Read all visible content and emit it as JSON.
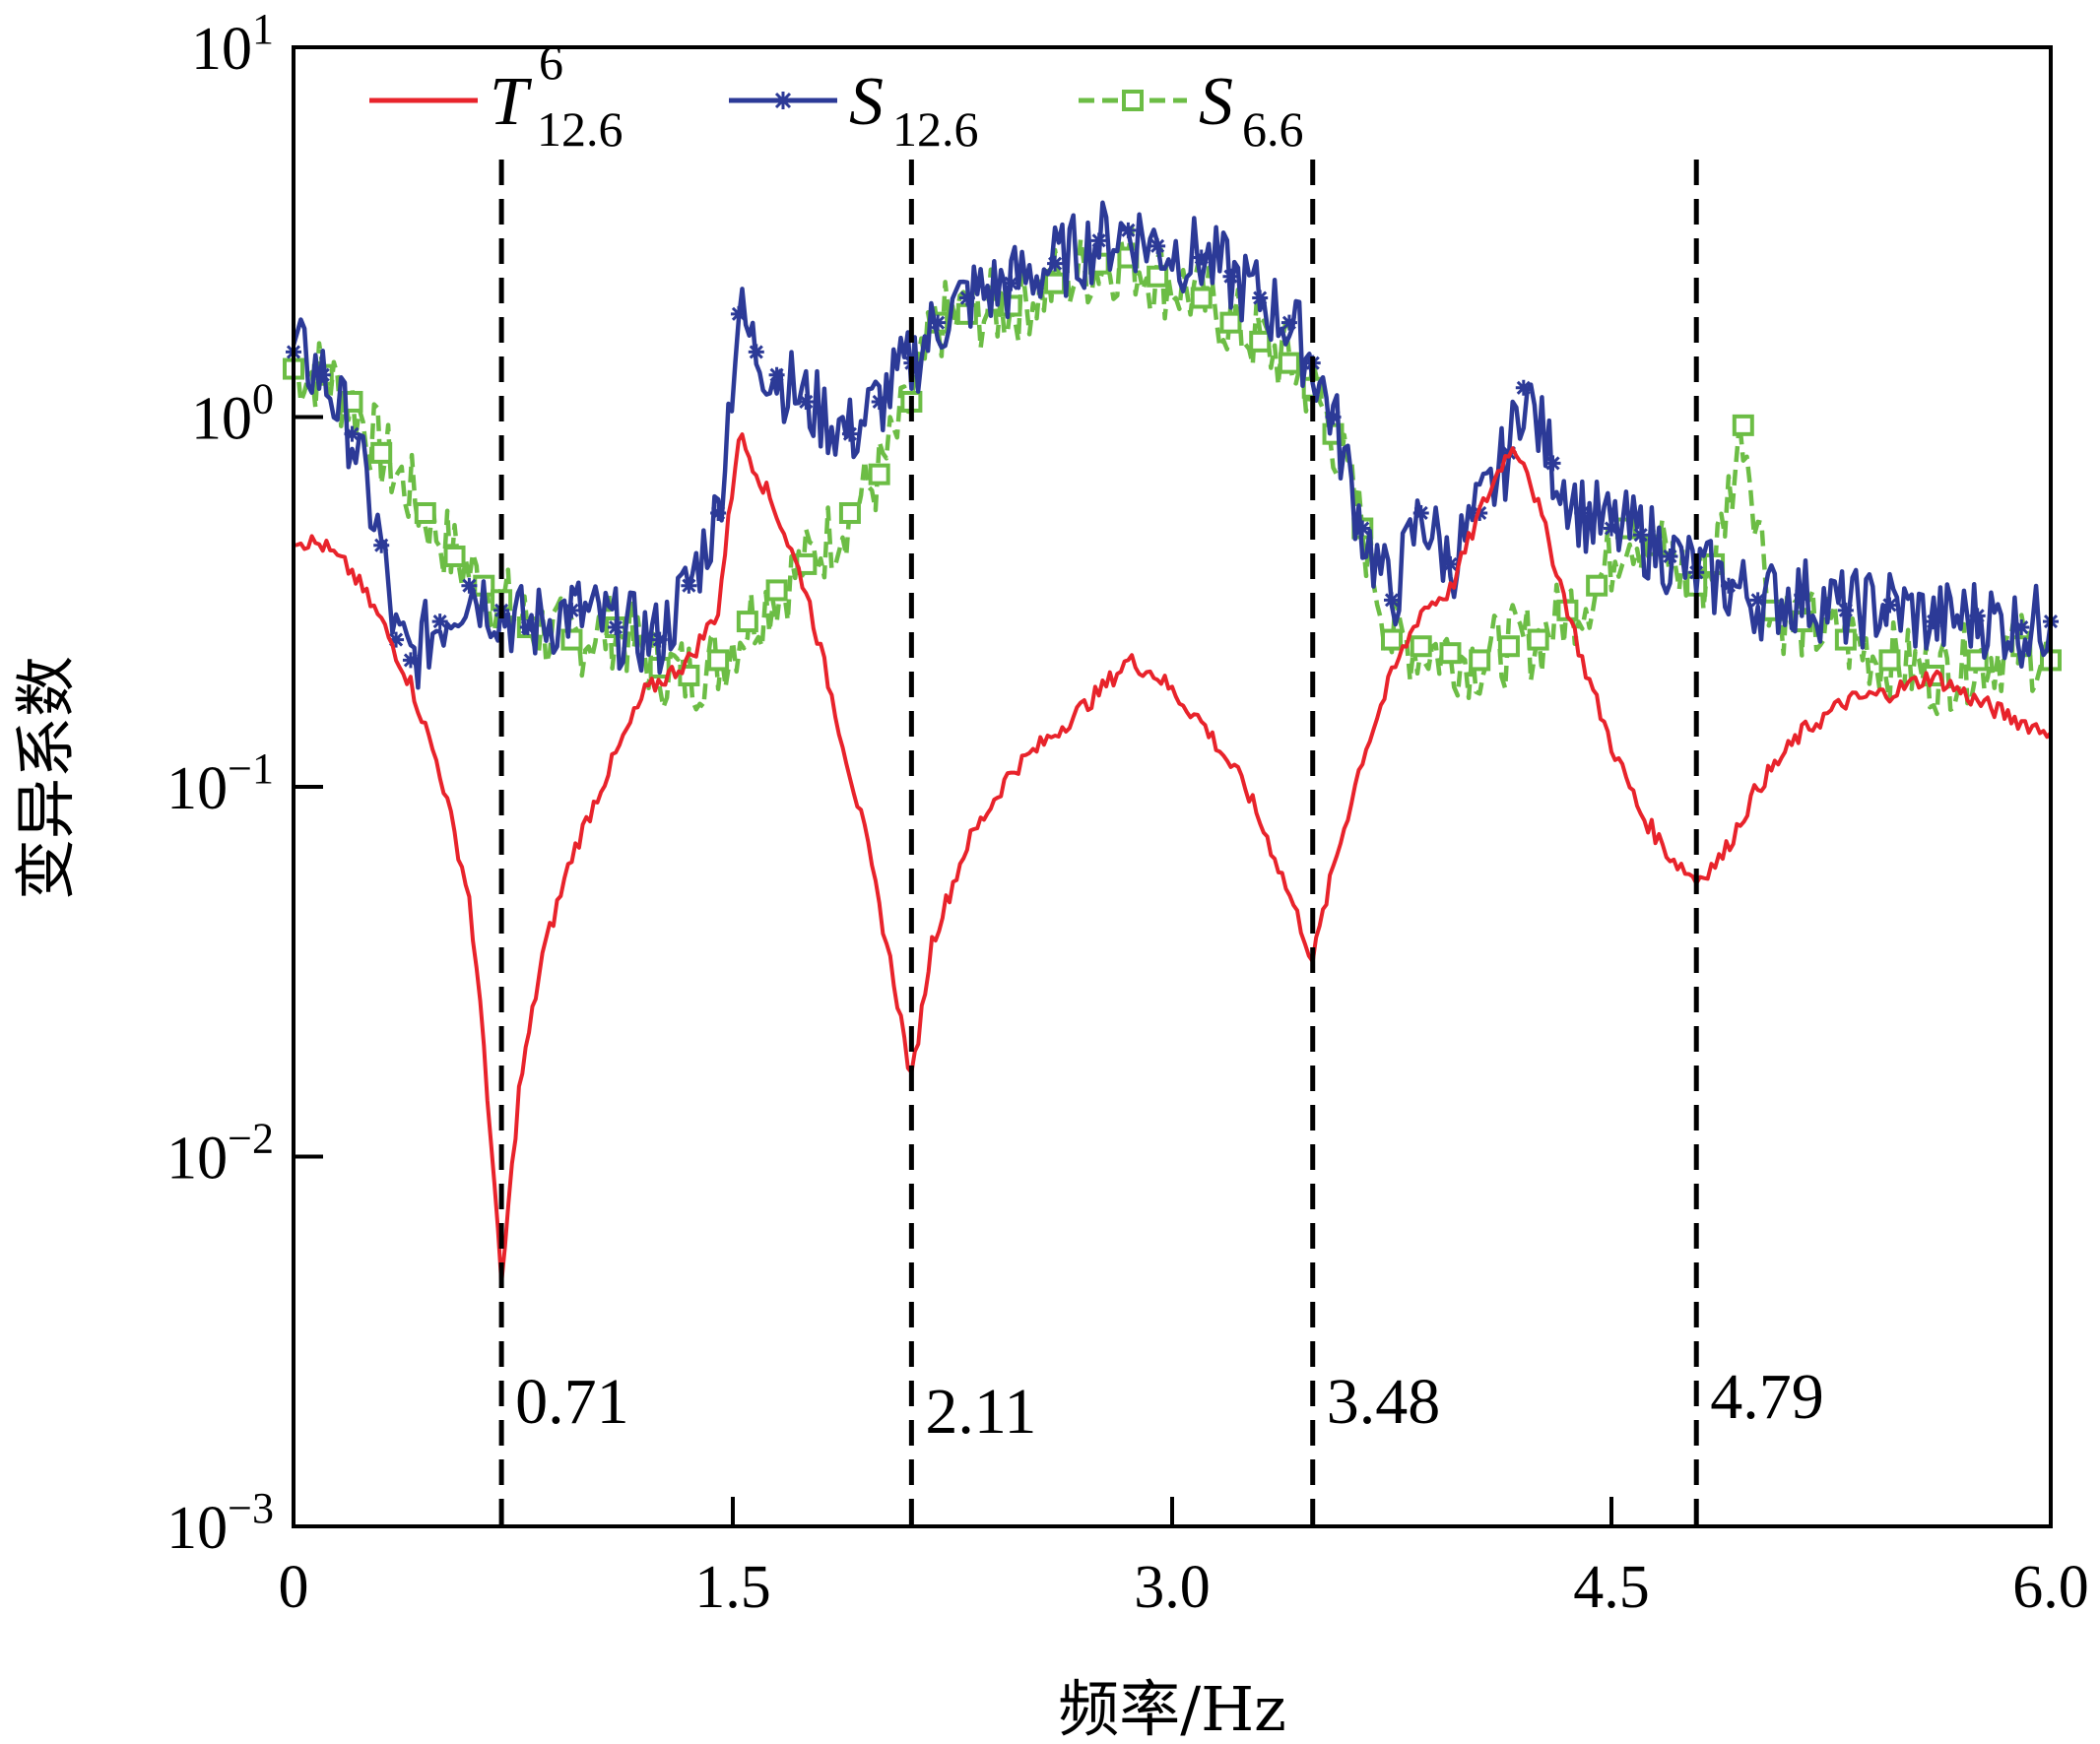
{
  "chart_data": {
    "type": "line",
    "title": "",
    "xlabel": "频率/Hz",
    "ylabel": "变异系数",
    "xlim": [
      0,
      6.0
    ],
    "ylim": [
      0.001,
      10
    ],
    "y_scale": "log",
    "x_ticks": [
      {
        "value": 0,
        "label": "0"
      },
      {
        "value": 1.5,
        "label": "1.5"
      },
      {
        "value": 3.0,
        "label": "3.0"
      },
      {
        "value": 4.5,
        "label": "4.5"
      },
      {
        "value": 6.0,
        "label": "6.0"
      }
    ],
    "y_ticks": [
      {
        "value": 0.001,
        "base": "10",
        "exp": "−3"
      },
      {
        "value": 0.01,
        "base": "10",
        "exp": "−2"
      },
      {
        "value": 0.1,
        "base": "10",
        "exp": "−1"
      },
      {
        "value": 1,
        "base": "10",
        "exp": "0"
      },
      {
        "value": 10,
        "base": "10",
        "exp": "1"
      }
    ],
    "grid": false,
    "legend_position": "top",
    "vertical_lines": [
      {
        "x": 0.71,
        "label": "0.71"
      },
      {
        "x": 2.11,
        "label": "2.11"
      },
      {
        "x": 3.48,
        "label": "3.48"
      },
      {
        "x": 4.79,
        "label": "4.79"
      }
    ],
    "series": [
      {
        "name": "T 6 12.6",
        "symbol": "T",
        "superscript": "6",
        "subscript": "12.6",
        "color": "#e8232b",
        "line_style": "solid",
        "marker": "none",
        "x": [
          0.0,
          0.1,
          0.2,
          0.3,
          0.4,
          0.5,
          0.6,
          0.65,
          0.71,
          0.77,
          0.85,
          0.95,
          1.05,
          1.2,
          1.35,
          1.45,
          1.52,
          1.58,
          1.65,
          1.75,
          1.85,
          1.95,
          2.05,
          2.11,
          2.18,
          2.3,
          2.45,
          2.6,
          2.75,
          2.85,
          2.95,
          3.1,
          3.25,
          3.35,
          3.44,
          3.48,
          3.55,
          3.65,
          3.75,
          3.85,
          3.95,
          4.05,
          4.15,
          4.2,
          4.3,
          4.4,
          4.5,
          4.6,
          4.7,
          4.79,
          4.88,
          5.0,
          5.15,
          5.3,
          5.45,
          5.6,
          5.75,
          5.9,
          6.0
        ],
        "y": [
          0.47,
          0.45,
          0.38,
          0.28,
          0.19,
          0.11,
          0.05,
          0.02,
          0.0045,
          0.015,
          0.035,
          0.065,
          0.1,
          0.18,
          0.22,
          0.3,
          0.9,
          0.72,
          0.55,
          0.34,
          0.16,
          0.075,
          0.03,
          0.016,
          0.038,
          0.07,
          0.11,
          0.14,
          0.18,
          0.22,
          0.2,
          0.15,
          0.1,
          0.065,
          0.042,
          0.034,
          0.06,
          0.12,
          0.2,
          0.3,
          0.34,
          0.55,
          0.82,
          0.78,
          0.42,
          0.22,
          0.13,
          0.085,
          0.065,
          0.056,
          0.065,
          0.1,
          0.14,
          0.17,
          0.18,
          0.2,
          0.17,
          0.15,
          0.14
        ]
      },
      {
        "name": "S 12.6",
        "symbol": "S",
        "subscript": "12.6",
        "color": "#2c3a97",
        "line_style": "solid",
        "marker": "asterisk",
        "x": [
          0.0,
          0.1,
          0.2,
          0.3,
          0.35,
          0.4,
          0.5,
          0.6,
          0.71,
          0.8,
          0.95,
          1.1,
          1.25,
          1.35,
          1.45,
          1.52,
          1.58,
          1.65,
          1.75,
          1.9,
          2.0,
          2.11,
          2.2,
          2.3,
          2.45,
          2.6,
          2.75,
          2.85,
          2.95,
          3.1,
          3.2,
          3.3,
          3.4,
          3.48,
          3.55,
          3.65,
          3.75,
          3.85,
          3.95,
          4.05,
          4.15,
          4.2,
          4.3,
          4.4,
          4.5,
          4.6,
          4.7,
          4.79,
          4.9,
          5.0,
          5.15,
          5.3,
          5.45,
          5.6,
          5.75,
          5.9,
          6.0
        ],
        "y": [
          1.5,
          1.3,
          0.9,
          0.45,
          0.25,
          0.22,
          0.28,
          0.35,
          0.3,
          0.27,
          0.3,
          0.27,
          0.25,
          0.35,
          0.55,
          1.9,
          1.5,
          1.3,
          1.1,
          0.9,
          1.1,
          1.4,
          1.8,
          2.1,
          2.3,
          2.6,
          3.0,
          3.2,
          2.9,
          2.7,
          2.4,
          2.1,
          1.8,
          1.4,
          1.0,
          0.5,
          0.32,
          0.55,
          0.4,
          0.55,
          0.8,
          1.2,
          0.75,
          0.55,
          0.5,
          0.48,
          0.42,
          0.38,
          0.35,
          0.32,
          0.33,
          0.3,
          0.31,
          0.28,
          0.29,
          0.27,
          0.28
        ]
      },
      {
        "name": "S 6.6",
        "symbol": "S",
        "subscript": "6.6",
        "color": "#6cbd45",
        "line_style": "dashed",
        "marker": "square",
        "x": [
          0.0,
          0.1,
          0.2,
          0.3,
          0.45,
          0.55,
          0.65,
          0.71,
          0.8,
          0.95,
          1.1,
          1.25,
          1.35,
          1.45,
          1.55,
          1.65,
          1.75,
          1.9,
          2.0,
          2.11,
          2.2,
          2.3,
          2.45,
          2.6,
          2.75,
          2.85,
          2.95,
          3.1,
          3.2,
          3.3,
          3.4,
          3.48,
          3.55,
          3.65,
          3.75,
          3.85,
          3.95,
          4.05,
          4.15,
          4.25,
          4.35,
          4.45,
          4.55,
          4.65,
          4.79,
          4.85,
          4.95,
          5.05,
          5.15,
          5.3,
          5.45,
          5.6,
          5.75,
          5.9,
          6.0
        ],
        "y": [
          1.35,
          1.3,
          1.1,
          0.8,
          0.55,
          0.42,
          0.35,
          0.32,
          0.27,
          0.25,
          0.27,
          0.21,
          0.2,
          0.22,
          0.28,
          0.34,
          0.4,
          0.55,
          0.7,
          1.1,
          1.8,
          1.9,
          2.0,
          2.3,
          2.6,
          2.7,
          2.4,
          2.1,
          1.8,
          1.6,
          1.4,
          1.2,
          0.9,
          0.5,
          0.25,
          0.24,
          0.23,
          0.22,
          0.24,
          0.25,
          0.3,
          0.35,
          0.5,
          0.45,
          0.35,
          0.4,
          0.95,
          0.3,
          0.28,
          0.25,
          0.22,
          0.2,
          0.22,
          0.24,
          0.22
        ]
      }
    ]
  }
}
